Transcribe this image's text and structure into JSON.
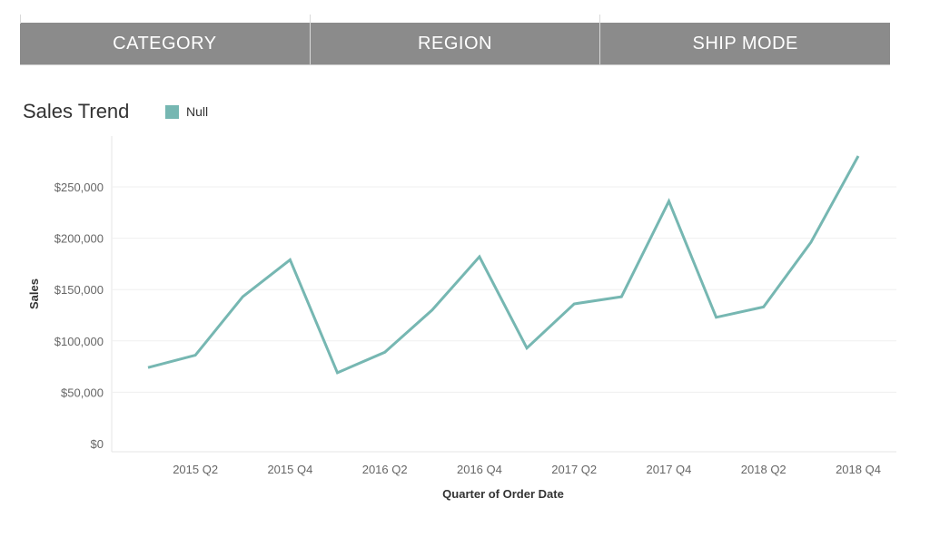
{
  "tabs": [
    {
      "label": "CATEGORY"
    },
    {
      "label": "REGION"
    },
    {
      "label": "SHIP MODE"
    }
  ],
  "chart_data": {
    "type": "line",
    "title": "Sales Trend",
    "xlabel": "Quarter of Order Date",
    "ylabel": "Sales",
    "x": [
      "2015 Q1",
      "2015 Q2",
      "2015 Q3",
      "2015 Q4",
      "2016 Q1",
      "2016 Q2",
      "2016 Q3",
      "2016 Q4",
      "2017 Q1",
      "2017 Q2",
      "2017 Q3",
      "2017 Q4",
      "2018 Q1",
      "2018 Q2",
      "2018 Q3",
      "2018 Q4"
    ],
    "x_tick_labels": [
      "2015 Q2",
      "2015 Q4",
      "2016 Q2",
      "2016 Q4",
      "2017 Q2",
      "2017 Q4",
      "2018 Q2",
      "2018 Q4"
    ],
    "ylim": [
      0,
      290000
    ],
    "y_ticks": [
      0,
      50000,
      100000,
      150000,
      200000,
      250000
    ],
    "y_tick_labels": [
      "$0",
      "$50,000",
      "$100,000",
      "$150,000",
      "$200,000",
      "$250,000"
    ],
    "series": [
      {
        "name": "Null",
        "color": "#76b7b2",
        "values": [
          74000,
          86000,
          143000,
          179000,
          69000,
          89000,
          130000,
          182000,
          93000,
          136000,
          143000,
          236000,
          123000,
          133000,
          196000,
          280000
        ]
      }
    ],
    "grid": "horizontal",
    "legend": "top-left"
  }
}
